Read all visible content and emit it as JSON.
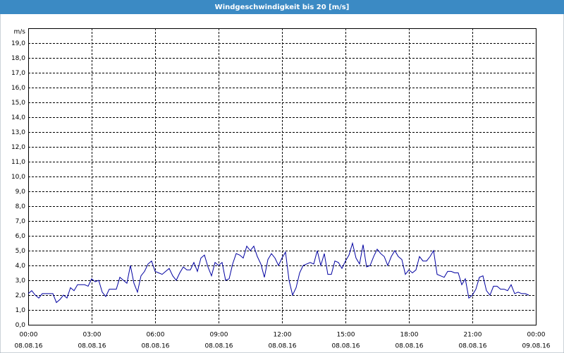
{
  "chart_data": {
    "type": "line",
    "title": "Windgeschwindigkeit bis 20 [m/s]",
    "y_label": "m/s",
    "x": [
      0,
      10,
      20,
      30,
      40,
      50,
      60,
      70,
      80,
      90,
      100,
      110,
      120,
      130,
      140,
      150,
      160,
      170,
      180,
      190,
      200,
      210,
      220,
      230,
      240,
      250,
      260,
      270,
      280,
      290,
      300,
      310,
      320,
      330,
      340,
      350,
      360,
      370,
      380,
      390,
      400,
      410,
      420,
      430,
      440,
      450,
      460,
      470,
      480,
      490,
      500,
      510,
      520,
      530,
      540,
      550,
      560,
      570,
      580,
      590,
      600,
      610,
      620,
      630,
      640,
      650,
      660,
      670,
      680,
      690,
      700,
      710,
      720,
      730,
      740,
      750,
      760,
      770,
      780,
      790,
      800,
      810,
      820,
      830,
      840,
      850,
      860,
      870,
      880,
      890,
      900,
      910,
      920,
      930,
      940,
      950,
      960,
      970,
      980,
      990,
      1000,
      1010,
      1020,
      1030,
      1040,
      1050,
      1060,
      1070,
      1080,
      1090,
      1100,
      1110,
      1120,
      1130,
      1140,
      1150,
      1160,
      1170,
      1180,
      1190,
      1200,
      1210,
      1220,
      1230,
      1240,
      1250,
      1260,
      1270,
      1280,
      1290,
      1300,
      1310,
      1320,
      1330,
      1340,
      1350,
      1360,
      1370,
      1380,
      1390,
      1400,
      1410,
      1420
    ],
    "series": [
      {
        "color": "#0000a0",
        "values": [
          2.1,
          2.3,
          2.0,
          1.8,
          2.1,
          2.1,
          2.1,
          2.1,
          1.5,
          1.7,
          2.0,
          1.8,
          2.5,
          2.3,
          2.7,
          2.7,
          2.7,
          2.6,
          3.1,
          2.9,
          3.0,
          2.2,
          1.9,
          2.4,
          2.4,
          2.4,
          3.2,
          3.0,
          2.8,
          4.0,
          2.8,
          2.2,
          3.3,
          3.6,
          4.1,
          4.3,
          3.6,
          3.5,
          3.4,
          3.6,
          3.8,
          3.3,
          3.0,
          3.5,
          3.9,
          3.7,
          3.7,
          4.2,
          3.6,
          4.5,
          4.7,
          3.9,
          3.3,
          4.2,
          4.0,
          4.2,
          3.0,
          3.1,
          4.1,
          4.8,
          4.7,
          4.5,
          5.3,
          5.0,
          5.3,
          4.6,
          4.1,
          3.2,
          4.4,
          4.8,
          4.5,
          4.0,
          4.5,
          4.9,
          3.0,
          2.0,
          2.5,
          3.5,
          4.0,
          4.1,
          4.2,
          4.1,
          5.0,
          4.0,
          4.8,
          3.4,
          3.4,
          4.3,
          4.2,
          3.8,
          4.3,
          4.7,
          5.5,
          4.5,
          4.1,
          5.4,
          3.9,
          4.0,
          4.6,
          5.1,
          4.8,
          4.6,
          4.0,
          4.6,
          5.0,
          4.6,
          4.4,
          3.4,
          3.7,
          3.5,
          3.7,
          4.6,
          4.3,
          4.3,
          4.6,
          5.0,
          3.4,
          3.3,
          3.2,
          3.6,
          3.6,
          3.5,
          3.5,
          2.7,
          3.1,
          1.8,
          2.0,
          2.4,
          3.2,
          3.3,
          2.3,
          2.0,
          2.6,
          2.6,
          2.4,
          2.4,
          2.3,
          2.7,
          2.1,
          2.2,
          2.1,
          2.1,
          2.0
        ]
      }
    ],
    "xlim": [
      0,
      1440
    ],
    "xticks": [
      {
        "value": 0,
        "label": "00:00",
        "sublabel": "08.08.16"
      },
      {
        "value": 180,
        "label": "03:00",
        "sublabel": "08.08.16"
      },
      {
        "value": 360,
        "label": "06:00",
        "sublabel": "08.08.16"
      },
      {
        "value": 540,
        "label": "09:00",
        "sublabel": "08.08.16"
      },
      {
        "value": 720,
        "label": "12:00",
        "sublabel": "08.08.16"
      },
      {
        "value": 900,
        "label": "15:00",
        "sublabel": "08.08.16"
      },
      {
        "value": 1080,
        "label": "18:00",
        "sublabel": "08.08.16"
      },
      {
        "value": 1260,
        "label": "21:00",
        "sublabel": "08.08.16"
      },
      {
        "value": 1440,
        "label": "00:00",
        "sublabel": "09.08.16"
      }
    ],
    "ylim": [
      0,
      20
    ],
    "yticks": [
      {
        "value": 0,
        "label": "0,0"
      },
      {
        "value": 1,
        "label": "1,0"
      },
      {
        "value": 2,
        "label": "2,0"
      },
      {
        "value": 3,
        "label": "3,0"
      },
      {
        "value": 4,
        "label": "4,0"
      },
      {
        "value": 5,
        "label": "5,0"
      },
      {
        "value": 6,
        "label": "6,0"
      },
      {
        "value": 7,
        "label": "7,0"
      },
      {
        "value": 8,
        "label": "8,0"
      },
      {
        "value": 9,
        "label": "9,0"
      },
      {
        "value": 10,
        "label": "10,0"
      },
      {
        "value": 11,
        "label": "11,0"
      },
      {
        "value": 12,
        "label": "12,0"
      },
      {
        "value": 13,
        "label": "13,0"
      },
      {
        "value": 14,
        "label": "14,0"
      },
      {
        "value": 15,
        "label": "15,0"
      },
      {
        "value": 16,
        "label": "16,0"
      },
      {
        "value": 17,
        "label": "17,0"
      },
      {
        "value": 18,
        "label": "18,0"
      },
      {
        "value": 19,
        "label": "19,0"
      }
    ],
    "grid": true
  }
}
